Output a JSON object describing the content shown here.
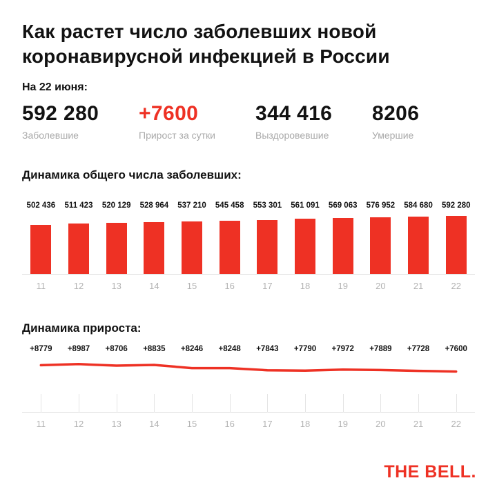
{
  "accent_color": "#ee3124",
  "text_color": "#121212",
  "muted_color": "#a9a9a9",
  "header": {
    "title_lines": [
      "Как растет число заболевших новой",
      "коронавирусной инфекцией в России"
    ],
    "date_label": "На 22 июня:"
  },
  "stats": [
    {
      "value": "592 280",
      "label": "Заболевшие",
      "color": "#121212"
    },
    {
      "value": "+7600",
      "label": "Прирост за сутки",
      "color": "#ee3124"
    },
    {
      "value": "344 416",
      "label": "Выздоровевшие",
      "color": "#121212"
    },
    {
      "value": "8206",
      "label": "Умершие",
      "color": "#121212"
    }
  ],
  "chart_data": [
    {
      "type": "bar",
      "title": "Динамика общего числа заболевших:",
      "categories": [
        "11",
        "12",
        "13",
        "14",
        "15",
        "16",
        "17",
        "18",
        "19",
        "20",
        "21",
        "22"
      ],
      "values": [
        502436,
        511423,
        520129,
        528964,
        537210,
        545458,
        553301,
        561091,
        569063,
        576952,
        584680,
        592280
      ],
      "labels": [
        "502 436",
        "511 423",
        "520 129",
        "528 964",
        "537 210",
        "545 458",
        "553 301",
        "561 091",
        "569 063",
        "576 952",
        "584 680",
        "592 280"
      ],
      "xlabel": "",
      "ylabel": "",
      "ylim": [
        0,
        592280
      ],
      "grid": false,
      "bar_color": "#ee3124"
    },
    {
      "type": "line",
      "title": "Динамика прироста:",
      "categories": [
        "11",
        "12",
        "13",
        "14",
        "15",
        "16",
        "17",
        "18",
        "19",
        "20",
        "21",
        "22"
      ],
      "values": [
        8779,
        8987,
        8706,
        8835,
        8246,
        8248,
        7843,
        7790,
        7972,
        7889,
        7728,
        7600
      ],
      "labels": [
        "+8779",
        "+8987",
        "+8706",
        "+8835",
        "+8246",
        "+8248",
        "+7843",
        "+7790",
        "+7972",
        "+7889",
        "+7728",
        "+7600"
      ],
      "xlabel": "",
      "ylabel": "",
      "ylim": [
        0,
        10500
      ],
      "grid": false,
      "line_color": "#ee3124"
    }
  ],
  "footer": {
    "brand": "THE BELL."
  }
}
